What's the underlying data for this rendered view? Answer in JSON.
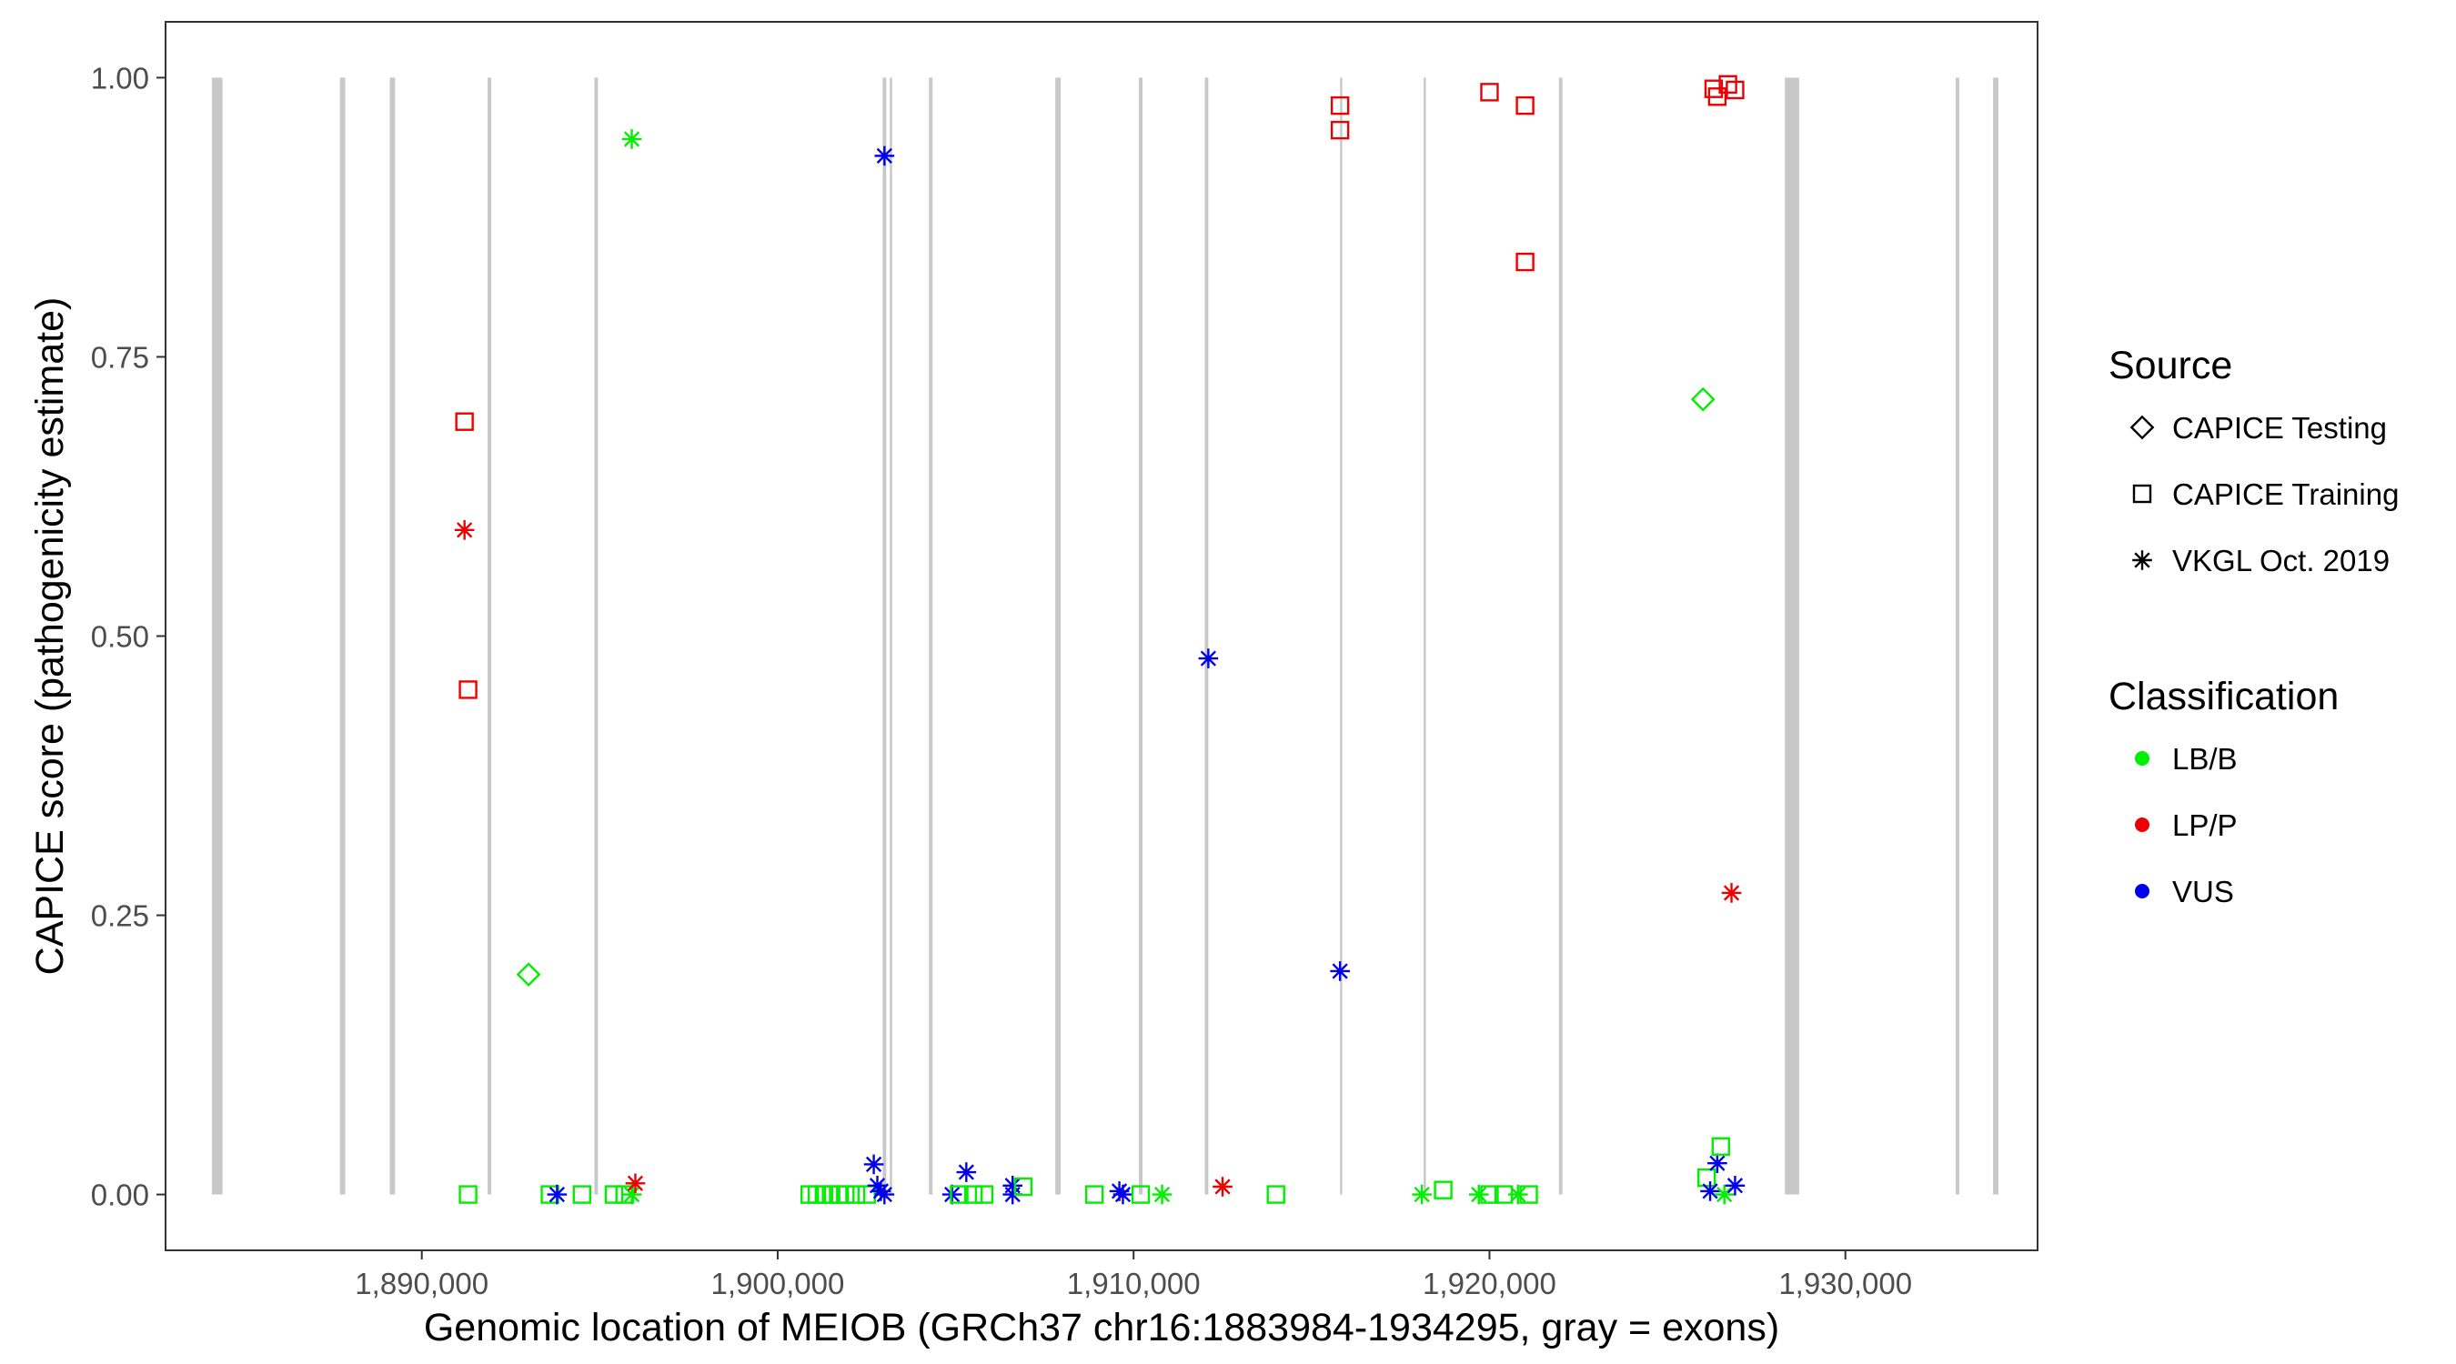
{
  "chart_data": {
    "type": "scatter",
    "xlabel": "Genomic location of MEIOB (GRCh37 chr16:1883984-1934295, gray = exons)",
    "ylabel": "CAPICE score (pathogenicity estimate)",
    "xlim": [
      1882800,
      1935400
    ],
    "ylim": [
      -0.05,
      1.05
    ],
    "x_ticks": [
      1890000,
      1900000,
      1910000,
      1920000,
      1930000
    ],
    "x_tick_labels": [
      "1,890,000",
      "1,900,000",
      "1,910,000",
      "1,920,000",
      "1,930,000"
    ],
    "y_ticks": [
      0,
      0.25,
      0.5,
      0.75,
      1.0
    ],
    "y_tick_labels": [
      "0.00",
      "0.25",
      "0.50",
      "0.75",
      "1.00"
    ],
    "grid": false,
    "legend_placement": "right",
    "exons": [
      [
        1884100,
        1884400
      ],
      [
        1887700,
        1887850
      ],
      [
        1889100,
        1889250
      ],
      [
        1891850,
        1891950
      ],
      [
        1894850,
        1894950
      ],
      [
        1902950,
        1903050
      ],
      [
        1903150,
        1903200
      ],
      [
        1904250,
        1904350
      ],
      [
        1907800,
        1907950
      ],
      [
        1910150,
        1910250
      ],
      [
        1912000,
        1912100
      ],
      [
        1915800,
        1915850
      ],
      [
        1918150,
        1918200
      ],
      [
        1921950,
        1922050
      ],
      [
        1928300,
        1928700
      ],
      [
        1933100,
        1933200
      ],
      [
        1934150,
        1934300
      ]
    ],
    "legend_source": {
      "title": "Source",
      "entries": [
        {
          "label": "CAPICE Testing",
          "shape": "diamond"
        },
        {
          "label": "CAPICE Training",
          "shape": "square"
        },
        {
          "label": "VKGL Oct. 2019",
          "shape": "asterisk"
        }
      ]
    },
    "legend_classification": {
      "title": "Classification",
      "entries": [
        {
          "label": "LB/B",
          "color": "#00ee00"
        },
        {
          "label": "LP/P",
          "color": "#ee0000"
        },
        {
          "label": "VUS",
          "color": "#0000ee"
        }
      ]
    },
    "exon_color": "#c8c8c8",
    "points": [
      {
        "x": 1891200,
        "y": 0.692,
        "source": "CAPICE Training",
        "class": "LP/P"
      },
      {
        "x": 1891200,
        "y": 0.595,
        "source": "VKGL Oct. 2019",
        "class": "LP/P"
      },
      {
        "x": 1891300,
        "y": 0.452,
        "source": "CAPICE Training",
        "class": "LP/P"
      },
      {
        "x": 1891300,
        "y": 0.0,
        "source": "CAPICE Training",
        "class": "LB/B"
      },
      {
        "x": 1893000,
        "y": 0.197,
        "source": "CAPICE Testing",
        "class": "LB/B"
      },
      {
        "x": 1893600,
        "y": 0.0,
        "source": "CAPICE Training",
        "class": "LB/B"
      },
      {
        "x": 1893800,
        "y": 0.0,
        "source": "VKGL Oct. 2019",
        "class": "VUS"
      },
      {
        "x": 1894500,
        "y": 0.0,
        "source": "CAPICE Training",
        "class": "LB/B"
      },
      {
        "x": 1895400,
        "y": 0.0,
        "source": "CAPICE Training",
        "class": "LB/B"
      },
      {
        "x": 1895700,
        "y": 0.0,
        "source": "CAPICE Training",
        "class": "LB/B"
      },
      {
        "x": 1895900,
        "y": 0.945,
        "source": "VKGL Oct. 2019",
        "class": "LB/B"
      },
      {
        "x": 1895900,
        "y": 0.0,
        "source": "VKGL Oct. 2019",
        "class": "LB/B"
      },
      {
        "x": 1896000,
        "y": 0.01,
        "source": "VKGL Oct. 2019",
        "class": "LP/P"
      },
      {
        "x": 1900900,
        "y": 0.0,
        "source": "CAPICE Training",
        "class": "LB/B"
      },
      {
        "x": 1901100,
        "y": 0.0,
        "source": "CAPICE Training",
        "class": "LB/B"
      },
      {
        "x": 1901300,
        "y": 0.0,
        "source": "CAPICE Training",
        "class": "LB/B"
      },
      {
        "x": 1901500,
        "y": 0.0,
        "source": "CAPICE Training",
        "class": "LB/B"
      },
      {
        "x": 1901700,
        "y": 0.0,
        "source": "CAPICE Training",
        "class": "LB/B"
      },
      {
        "x": 1901900,
        "y": 0.0,
        "source": "CAPICE Training",
        "class": "LB/B"
      },
      {
        "x": 1902200,
        "y": 0.0,
        "source": "CAPICE Training",
        "class": "LB/B"
      },
      {
        "x": 1902500,
        "y": 0.0,
        "source": "CAPICE Training",
        "class": "LB/B"
      },
      {
        "x": 1902700,
        "y": 0.027,
        "source": "VKGL Oct. 2019",
        "class": "VUS"
      },
      {
        "x": 1902800,
        "y": 0.008,
        "source": "VKGL Oct. 2019",
        "class": "VUS"
      },
      {
        "x": 1902900,
        "y": 0.003,
        "source": "VKGL Oct. 2019",
        "class": "VUS"
      },
      {
        "x": 1903000,
        "y": 0.93,
        "source": "VKGL Oct. 2019",
        "class": "VUS"
      },
      {
        "x": 1903000,
        "y": 0.0,
        "source": "VKGL Oct. 2019",
        "class": "VUS"
      },
      {
        "x": 1904900,
        "y": 0.0,
        "source": "VKGL Oct. 2019",
        "class": "VUS"
      },
      {
        "x": 1905100,
        "y": 0.0,
        "source": "CAPICE Training",
        "class": "LB/B"
      },
      {
        "x": 1905300,
        "y": 0.02,
        "source": "VKGL Oct. 2019",
        "class": "VUS"
      },
      {
        "x": 1905500,
        "y": 0.0,
        "source": "CAPICE Training",
        "class": "LB/B"
      },
      {
        "x": 1905800,
        "y": 0.0,
        "source": "CAPICE Training",
        "class": "LB/B"
      },
      {
        "x": 1906600,
        "y": 0.008,
        "source": "VKGL Oct. 2019",
        "class": "VUS"
      },
      {
        "x": 1906600,
        "y": 0.0,
        "source": "VKGL Oct. 2019",
        "class": "VUS"
      },
      {
        "x": 1906900,
        "y": 0.007,
        "source": "CAPICE Training",
        "class": "LB/B"
      },
      {
        "x": 1908900,
        "y": 0.0,
        "source": "CAPICE Training",
        "class": "LB/B"
      },
      {
        "x": 1909600,
        "y": 0.003,
        "source": "VKGL Oct. 2019",
        "class": "VUS"
      },
      {
        "x": 1909700,
        "y": 0.0,
        "source": "VKGL Oct. 2019",
        "class": "VUS"
      },
      {
        "x": 1910200,
        "y": 0.0,
        "source": "CAPICE Training",
        "class": "LB/B"
      },
      {
        "x": 1910800,
        "y": 0.0,
        "source": "VKGL Oct. 2019",
        "class": "LB/B"
      },
      {
        "x": 1912100,
        "y": 0.48,
        "source": "VKGL Oct. 2019",
        "class": "VUS"
      },
      {
        "x": 1912500,
        "y": 0.007,
        "source": "VKGL Oct. 2019",
        "class": "LP/P"
      },
      {
        "x": 1914000,
        "y": 0.0,
        "source": "CAPICE Training",
        "class": "LB/B"
      },
      {
        "x": 1915800,
        "y": 0.975,
        "source": "CAPICE Training",
        "class": "LP/P"
      },
      {
        "x": 1915800,
        "y": 0.953,
        "source": "CAPICE Training",
        "class": "LP/P"
      },
      {
        "x": 1915800,
        "y": 0.2,
        "source": "VKGL Oct. 2019",
        "class": "VUS"
      },
      {
        "x": 1918100,
        "y": 0.0,
        "source": "VKGL Oct. 2019",
        "class": "LB/B"
      },
      {
        "x": 1918700,
        "y": 0.004,
        "source": "CAPICE Training",
        "class": "LB/B"
      },
      {
        "x": 1919700,
        "y": 0.0,
        "source": "VKGL Oct. 2019",
        "class": "LB/B"
      },
      {
        "x": 1920000,
        "y": 0.987,
        "source": "CAPICE Training",
        "class": "LP/P"
      },
      {
        "x": 1920000,
        "y": 0.0,
        "source": "CAPICE Training",
        "class": "LB/B"
      },
      {
        "x": 1920400,
        "y": 0.0,
        "source": "CAPICE Training",
        "class": "LB/B"
      },
      {
        "x": 1920800,
        "y": 0.0,
        "source": "VKGL Oct. 2019",
        "class": "LB/B"
      },
      {
        "x": 1921000,
        "y": 0.975,
        "source": "CAPICE Training",
        "class": "LP/P"
      },
      {
        "x": 1921000,
        "y": 0.835,
        "source": "CAPICE Training",
        "class": "LP/P"
      },
      {
        "x": 1921100,
        "y": 0.0,
        "source": "CAPICE Training",
        "class": "LB/B"
      },
      {
        "x": 1926000,
        "y": 0.712,
        "source": "CAPICE Testing",
        "class": "LB/B"
      },
      {
        "x": 1926100,
        "y": 0.015,
        "source": "CAPICE Training",
        "class": "LB/B"
      },
      {
        "x": 1926200,
        "y": 0.003,
        "source": "VKGL Oct. 2019",
        "class": "VUS"
      },
      {
        "x": 1926300,
        "y": 0.99,
        "source": "CAPICE Training",
        "class": "LP/P"
      },
      {
        "x": 1926400,
        "y": 0.028,
        "source": "VKGL Oct. 2019",
        "class": "VUS"
      },
      {
        "x": 1926400,
        "y": 0.983,
        "source": "CAPICE Training",
        "class": "LP/P"
      },
      {
        "x": 1926500,
        "y": 0.043,
        "source": "CAPICE Training",
        "class": "LB/B"
      },
      {
        "x": 1926600,
        "y": 0.0,
        "source": "VKGL Oct. 2019",
        "class": "LB/B"
      },
      {
        "x": 1926700,
        "y": 0.994,
        "source": "CAPICE Training",
        "class": "LP/P"
      },
      {
        "x": 1926800,
        "y": 0.27,
        "source": "VKGL Oct. 2019",
        "class": "LP/P"
      },
      {
        "x": 1926900,
        "y": 0.989,
        "source": "CAPICE Training",
        "class": "LP/P"
      },
      {
        "x": 1926900,
        "y": 0.008,
        "source": "VKGL Oct. 2019",
        "class": "VUS"
      }
    ]
  }
}
